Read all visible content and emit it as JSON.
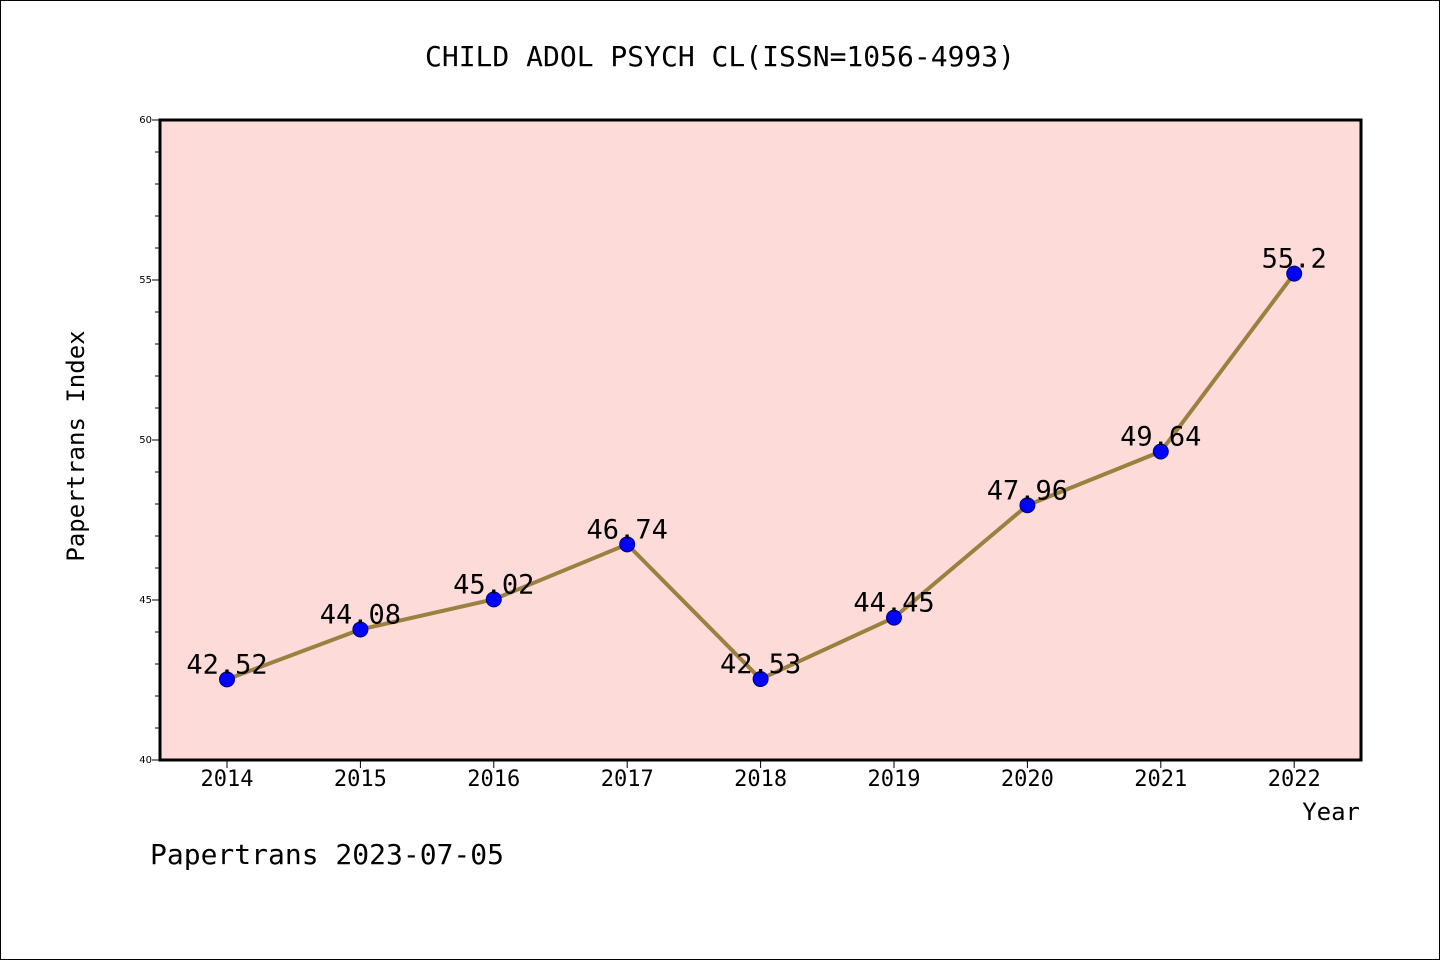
{
  "chart_data": {
    "type": "line",
    "title": "CHILD ADOL PSYCH CL(ISSN=1056-4993)",
    "xlabel": "Year",
    "ylabel": "Papertrans Index",
    "categories": [
      "2014",
      "2015",
      "2016",
      "2017",
      "2018",
      "2019",
      "2020",
      "2021",
      "2022"
    ],
    "series": [
      {
        "values": [
          42.52,
          44.08,
          45.02,
          46.74,
          42.53,
          44.45,
          47.96,
          49.64,
          55.2
        ],
        "labels": [
          "42.52",
          "44.08",
          "45.02",
          "46.74",
          "42.53",
          "44.45",
          "47.96",
          "49.64",
          "55.2"
        ]
      }
    ],
    "ylim": [
      40,
      60
    ],
    "yticks": [
      "40",
      "45",
      "50",
      "55",
      "60"
    ],
    "grid": false,
    "colors": {
      "plot_background": "#fddbd8",
      "line": "#9c8040",
      "marker": "#0000ff",
      "marker_edge": "#00007a"
    }
  },
  "footer": {
    "stamp": "Papertrans 2023-07-05"
  }
}
